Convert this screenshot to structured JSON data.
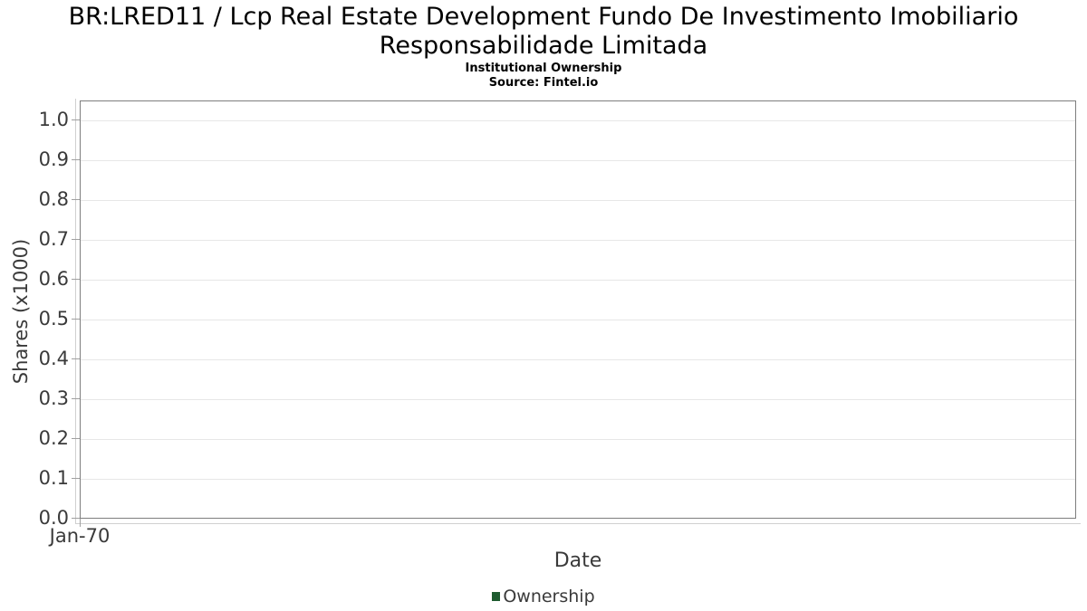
{
  "title": {
    "line1": "BR:LRED11 / Lcp Real Estate Development Fundo De Investimento Imobiliario",
    "line2": "Responsabilidade Limitada"
  },
  "subtitle": "Institutional Ownership",
  "source": "Source: Fintel.io",
  "chart_data": {
    "type": "line",
    "title": "BR:LRED11 / Lcp Real Estate Development Fundo De Investimento Imobiliario Responsabilidade Limitada",
    "subtitle": "Institutional Ownership",
    "source": "Source: Fintel.io",
    "xlabel": "Date",
    "ylabel": "Shares (x1000)",
    "x_tick_labels": [
      "Jan-70"
    ],
    "y_tick_labels": [
      "0.0",
      "0.1",
      "0.2",
      "0.3",
      "0.4",
      "0.5",
      "0.6",
      "0.7",
      "0.8",
      "0.9",
      "1.0"
    ],
    "y_ticks": [
      0.0,
      0.1,
      0.2,
      0.3,
      0.4,
      0.5,
      0.6,
      0.7,
      0.8,
      0.9,
      1.0
    ],
    "ylim": [
      0,
      1.05
    ],
    "grid": "horizontal gridlines on",
    "legend_position": "bottom-center",
    "series": [
      {
        "name": "Ownership",
        "color": "#1e5b2f",
        "x": [],
        "values": []
      }
    ]
  },
  "colors": {
    "legend_marker": "#1e5b2f",
    "plot_border": "#7d7d7d",
    "gridline": "#e7e7e7",
    "axis_line": "#d0d0d0",
    "tick_mark": "#a0a0a0",
    "label_text": "#3a3a3a",
    "title_text": "#000000"
  }
}
